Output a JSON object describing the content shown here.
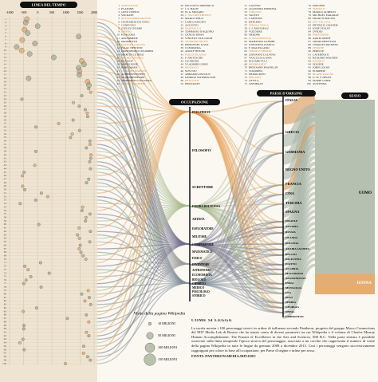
{
  "headers": {
    "timeline": "LINEA DEL TEMPO",
    "occupation": "OCCUPAZIONE",
    "country": "PAESE D'ORIGINE",
    "sex": "SESSO"
  },
  "timeline": {
    "xlim": [
      -1000,
      2000
    ],
    "xticks": [
      -1000,
      -500,
      0,
      500,
      1000,
      1500,
      2000
    ]
  },
  "people": [
    {
      "rank": 1,
      "name": "ARISTOTELE",
      "born": -384
    },
    {
      "rank": 2,
      "name": "PLATONE",
      "born": -427
    },
    {
      "rank": 3,
      "name": "GESÙ CRISTO",
      "born": -4
    },
    {
      "rank": 4,
      "name": "SOCRATE",
      "born": -469
    },
    {
      "rank": 5,
      "name": "ALESSANDRO MAGNO",
      "born": -356
    },
    {
      "rank": 6,
      "name": "LEONARDO DA VINCI",
      "born": 1452
    },
    {
      "rank": 7,
      "name": "CONFUCIO",
      "born": -551
    },
    {
      "rank": 8,
      "name": "GIULIO CESARE",
      "born": -100
    },
    {
      "rank": 9,
      "name": "OMERO",
      "born": -750
    },
    {
      "rank": 10,
      "name": "PITAGORA",
      "born": -570
    },
    {
      "rank": 11,
      "name": "ARCHIMEDE",
      "born": -287
    },
    {
      "rank": 12,
      "name": "MAOMETTO",
      "born": 570
    },
    {
      "rank": 13,
      "name": "GALILEO GALILEI",
      "born": 1564
    },
    {
      "rank": 14,
      "name": "ISAAC NEWTON",
      "born": 1643
    },
    {
      "rank": 15,
      "name": "CRISTOFORO COLOMBO",
      "born": 1451
    },
    {
      "rank": 16,
      "name": "MARTIN LUTERO",
      "born": 1483
    },
    {
      "rank": 17,
      "name": "MICHELANGELO",
      "born": 1475
    },
    {
      "rank": 18,
      "name": "EUCLIDE",
      "born": -325
    },
    {
      "rank": 19,
      "name": "NAPOLEONE",
      "born": 1769
    },
    {
      "rank": 20,
      "name": "KARL MARX",
      "born": 1818
    },
    {
      "rank": 21,
      "name": "CHARLES DARWIN",
      "born": 1809
    },
    {
      "rank": 22,
      "name": "ALBERT EINSTEIN",
      "born": 1879
    },
    {
      "rank": 23,
      "name": "W. SHAKESPEARE",
      "born": 1564
    },
    {
      "rank": 24,
      "name": "SIDDHARTA GAUTAMA",
      "born": -563
    },
    {
      "rank": 25,
      "name": "DANTE ALIGHIERI",
      "born": 1265
    },
    {
      "rank": 26,
      "name": "NICCOLÒ COPERNICO",
      "born": 1473
    },
    {
      "rank": 27,
      "name": "J. S. BACH",
      "born": 1685
    },
    {
      "rank": 28,
      "name": "W. A. MOZART",
      "born": 1756
    },
    {
      "rank": 29,
      "name": "L. VAN BEETHOVEN",
      "born": 1770
    },
    {
      "rank": 30,
      "name": "MARCO POLO",
      "born": 1254
    },
    {
      "rank": 31,
      "name": "CARLO MAGNO",
      "born": 742
    },
    {
      "rank": 32,
      "name": "AUGUSTO",
      "born": -63
    },
    {
      "rank": 33,
      "name": "RAFFAELLO",
      "born": 1483
    },
    {
      "rank": 34,
      "name": "TOMMASO D'AQUINO",
      "born": 1225
    },
    {
      "rank": 35,
      "name": "GENGIS KHAN",
      "born": 1162
    },
    {
      "rank": 36,
      "name": "VINCENT VAN GOGH",
      "born": 1853
    },
    {
      "rank": 37,
      "name": "SIGMUND FREUD",
      "born": 1856
    },
    {
      "rank": 38,
      "name": "IMMANUEL KANT",
      "born": 1724
    },
    {
      "rank": 39,
      "name": "CLEOPATRA",
      "born": -69
    },
    {
      "rank": 40,
      "name": "ADOLF HITLER",
      "born": 1889
    },
    {
      "rank": 41,
      "name": "PABLO PICASSO",
      "born": 1881
    },
    {
      "rank": 42,
      "name": "F. NIETZSCHE",
      "born": 1844
    },
    {
      "rank": 43,
      "name": "CICERONE",
      "born": -106
    },
    {
      "rank": 44,
      "name": "VLADIMIR LENIN",
      "born": 1870
    },
    {
      "rank": 45,
      "name": "ERODOTO",
      "born": -484
    },
    {
      "rank": 46,
      "name": "SUN TZU",
      "born": -544
    },
    {
      "rank": 47,
      "name": "ABRAMO LINCOLN",
      "born": 1809
    },
    {
      "rank": 48,
      "name": "GEORGE WASHINGTON",
      "born": 1732
    },
    {
      "rank": 49,
      "name": "ERACLITO",
      "born": -535
    },
    {
      "rank": 50,
      "name": "IPPOCRATE",
      "born": -460
    },
    {
      "rank": 51,
      "name": "GALENO",
      "born": 129
    },
    {
      "rank": 52,
      "name": "AGOSTINO D'IPPONA",
      "born": 354
    },
    {
      "rank": 53,
      "name": "VIRGILIO",
      "born": -70
    },
    {
      "rank": 54,
      "name": "TALETE",
      "born": -624
    },
    {
      "rank": 55,
      "name": "CARTESIO",
      "born": 1596
    },
    {
      "rank": 56,
      "name": "KEPLERO",
      "born": 1571
    },
    {
      "rank": 57,
      "name": "NIKOLA TESLA",
      "born": 1856
    },
    {
      "rank": 58,
      "name": "J.-J. ROUSSEAU",
      "born": 1712
    },
    {
      "rank": 59,
      "name": "VOLTAIRE",
      "born": 1694
    },
    {
      "rank": 60,
      "name": "NERONE",
      "born": 37
    },
    {
      "rank": 61,
      "name": "N. MACHIAVELLI",
      "born": 1469
    },
    {
      "rank": 62,
      "name": "MAHATMA GANDHI",
      "born": 1869
    },
    {
      "rank": 63,
      "name": "GIOVANNA D'ARCO",
      "born": 1412
    },
    {
      "rank": 64,
      "name": "F. MAGELLANO",
      "born": 1480
    },
    {
      "rank": 65,
      "name": "THOMAS EDISON",
      "born": 1847
    },
    {
      "rank": 66,
      "name": "GIOVANNI CALVINO",
      "born": 1509
    },
    {
      "rank": 67,
      "name": "VASCO DA GAMA",
      "born": 1469
    },
    {
      "rank": 68,
      "name": "ELISABETTA I",
      "born": 1533
    },
    {
      "rank": 69,
      "name": "REMBRANDT",
      "born": 1606
    },
    {
      "rank": 70,
      "name": "BENJAMIN FRANKLIN",
      "born": 1706
    },
    {
      "rank": 71,
      "name": "TOLOMEO",
      "born": 100
    },
    {
      "rank": 72,
      "name": "DEMOCRITO",
      "born": -460
    },
    {
      "rank": 73,
      "name": "EPICURO",
      "born": -341
    },
    {
      "rank": 74,
      "name": "ATTILA",
      "born": 406
    },
    {
      "rank": 75,
      "name": "ANNIBALE",
      "born": -247
    },
    {
      "rank": 76,
      "name": "DIOGENE",
      "born": -412
    },
    {
      "rank": 77,
      "name": "SOFOCLE",
      "born": -497
    },
    {
      "rank": 78,
      "name": "MARCO AURELIO",
      "born": 121
    },
    {
      "rank": 79,
      "name": "MICHAEL FARADAY",
      "born": 1791
    },
    {
      "rank": 80,
      "name": "FRANCIS BACON",
      "born": 1561
    },
    {
      "rank": 81,
      "name": "LEV TOLSTOJ",
      "born": 1828
    },
    {
      "rank": 82,
      "name": "PIETRO IL GRANDE",
      "born": 1672
    },
    {
      "rank": 83,
      "name": "IOSIF STALIN",
      "born": 1878
    },
    {
      "rank": 84,
      "name": "OVIDIO",
      "born": -43
    },
    {
      "rank": 85,
      "name": "PARMENIDE",
      "born": -515
    },
    {
      "rank": 86,
      "name": "ADAM SMITH",
      "born": 1723
    },
    {
      "rank": 87,
      "name": "OMAR KHAYYAM",
      "born": 1048
    },
    {
      "rank": 88,
      "name": "CHARLES DICKENS",
      "born": 1812
    },
    {
      "rank": 89,
      "name": "ZENONE",
      "born": -490
    },
    {
      "rank": 90,
      "name": "PERICLE",
      "born": -495
    },
    {
      "rank": 91,
      "name": "CATERINA II",
      "born": 1729
    },
    {
      "rank": 92,
      "name": "RICHARD WAGNER",
      "born": 1813
    },
    {
      "rank": 93,
      "name": "ESCHILO",
      "born": -525
    },
    {
      "rank": 94,
      "name": "SOLONE",
      "born": -638
    },
    {
      "rank": 95,
      "name": "JOHN LOCKE",
      "born": 1632
    },
    {
      "rank": 96,
      "name": "EURIPIDE",
      "born": -480
    },
    {
      "rank": 97,
      "name": "BLAISE PASCAL",
      "born": 1623
    },
    {
      "rank": 98,
      "name": "G. W. F. HEGEL",
      "born": 1770
    },
    {
      "rank": 99,
      "name": "MARIE CURIE",
      "born": 1867
    },
    {
      "rank": 100,
      "name": "AVICENNA",
      "born": 980
    }
  ],
  "occupations": [
    "POLITICO",
    "FILOSOFO",
    "SCRITTORE",
    "FIGURA RELIGIOSA",
    "ARTISTA",
    "ESPLORATORE",
    "MILITARE",
    "COMPOSITORE",
    "MATEMATICO",
    "FISICO",
    "INVENTORE",
    "ASTRONOMO",
    "ECONOMISTA",
    "BIOLOGO",
    "CHIMICO",
    "MEDICO",
    "PSICOLOGO",
    "STORICO"
  ],
  "countries": [
    "ITALIA",
    "GRECIA",
    "GERMANIA",
    "REGNO UNITO",
    "FRANCIA",
    "CINA",
    "TURCHIA",
    "SPAGNA",
    "ISRAELE",
    "AUSTRIA",
    "RUSSIA",
    "OLANDA",
    "POLONIA",
    "ARABIA SAUDITA",
    "BELGIO",
    "PALESTINA",
    "EGITTO",
    "ALGERIA",
    "MACEDONIA",
    "AFGHANISTAN",
    "INDIA",
    "MONGOLIA",
    "USA",
    "IRAN",
    "SERBIA",
    "GEORGIA",
    "NEPAL",
    "UZBEKISTAN"
  ],
  "sexes": [
    "UOMO",
    "DONNA"
  ],
  "legend": {
    "title": "Visite della pagina Wikipedia",
    "items": [
      {
        "value": 10,
        "label": "10 MILIONI"
      },
      {
        "value": 50,
        "label": "50 MILIONI"
      },
      {
        "value": 100,
        "label": "100 MILIONI"
      },
      {
        "value": 150,
        "label": "150 MILIONI"
      }
    ]
  },
  "how_to_read": {
    "title": "COME SI LEGGE",
    "text": "La tavola mostra i 100 personaggi storici in ordine di influenza secondo Pantheon, progetto del gruppo Macro Connections del MIT Media Lab di Boston che ha tenuto conto di diversi parametri tra cui Wikipedia e il volume di Charles Murray Human Accomplishment: The Pursuit of Excellence in the Arts and Sciences, 800 B.C. Nella parte sinistra è possibile osservare sulla linea temporale l'epoca storica del personaggio, associata a un cerchio che rappresenta il numero di visite della pagina Wikipedia in tutte le lingue da gennaio 2008 a dicembre 2013. Così i personaggi vengono successivamente raggruppati per colore in base all'occupazione, per Paese d'origine e infine per sesso.",
    "source": "FONTI: PANTHEON.MEDIA.MIT.EDU"
  }
}
